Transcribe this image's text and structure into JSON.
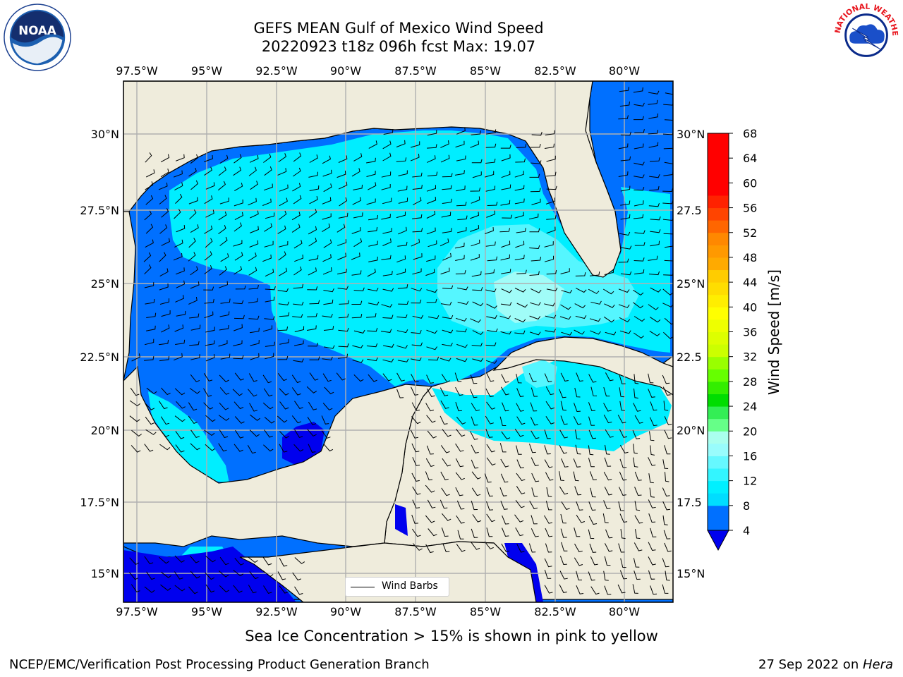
{
  "title": {
    "line1": "GEFS MEAN Gulf of Mexico Wind Speed",
    "line2": "20220923 t18z 096h fcst   Max: 19.07"
  },
  "logos": {
    "left": {
      "icon": "noaa-logo-icon",
      "text": "NOAA"
    },
    "right": {
      "icon": "nws-logo-icon",
      "text": "NATIONAL WEATHER SERVICE"
    }
  },
  "map": {
    "lon_labels": [
      "97.5°W",
      "95°W",
      "92.5°W",
      "90°W",
      "87.5°W",
      "85°W",
      "82.5°W",
      "80°W"
    ],
    "lon_values": [
      -97.5,
      -95,
      -92.5,
      -90,
      -87.5,
      -85,
      -82.5,
      -80
    ],
    "lat_labels_left": [
      "30°N",
      "27.5°N",
      "25°N",
      "22.5°N",
      "20°N",
      "17.5°N",
      "15°N"
    ],
    "lat_labels_right": [
      "30°N",
      "27.5",
      "25°N",
      "22.5",
      "20°N",
      "17.5",
      "15°N"
    ],
    "lat_values": [
      30,
      27.5,
      25,
      22.5,
      20,
      17.5,
      15
    ],
    "extent": {
      "lon_min": -98,
      "lon_max": -78.2,
      "lat_min": 14,
      "lat_max": 31.8
    },
    "land_color": "#efecdc",
    "grid_color": "#b0b0b0"
  },
  "legend": {
    "label": "Wind Barbs"
  },
  "colorbar": {
    "label": "Wind Speed [m/s]",
    "ticks": [
      "4",
      "8",
      "12",
      "16",
      "20",
      "24",
      "28",
      "32",
      "36",
      "40",
      "44",
      "48",
      "52",
      "56",
      "60",
      "64",
      "68"
    ],
    "levels": [
      4,
      6,
      8,
      10,
      12,
      14,
      16,
      18,
      20,
      22,
      24,
      26,
      28,
      30,
      32,
      34,
      36,
      38,
      40,
      42,
      44,
      46,
      48,
      50,
      52,
      54,
      56,
      58,
      60,
      62,
      64,
      66,
      68
    ],
    "colors": [
      "#0070ff",
      "#0070ff",
      "#00ddff",
      "#00f0ff",
      "#33f5ff",
      "#66f8ff",
      "#99fcfc",
      "#aaffee",
      "#66ff88",
      "#33ee55",
      "#00dd00",
      "#33ee00",
      "#66ff00",
      "#99ff00",
      "#ccff00",
      "#ddff00",
      "#eeff00",
      "#ffff00",
      "#ffee00",
      "#ffdd00",
      "#ffcc00",
      "#ffaa00",
      "#ff9900",
      "#ff8800",
      "#ff6600",
      "#ff4400",
      "#ff2200",
      "#ff0000"
    ],
    "under_color": "#0000ee"
  },
  "chart_data": {
    "type": "heatmap",
    "variable": "Wind Speed",
    "units": "m/s",
    "max": 19.07,
    "levels_shown": [
      4,
      8,
      12,
      16,
      20
    ]
  },
  "footer": {
    "note": "Sea Ice Concentration > 15% is shown in pink to yellow",
    "left": "NCEP/EMC/Verification Post Processing Product Generation Branch",
    "right_date": "27 Sep 2022 on ",
    "right_host": "Hera"
  }
}
